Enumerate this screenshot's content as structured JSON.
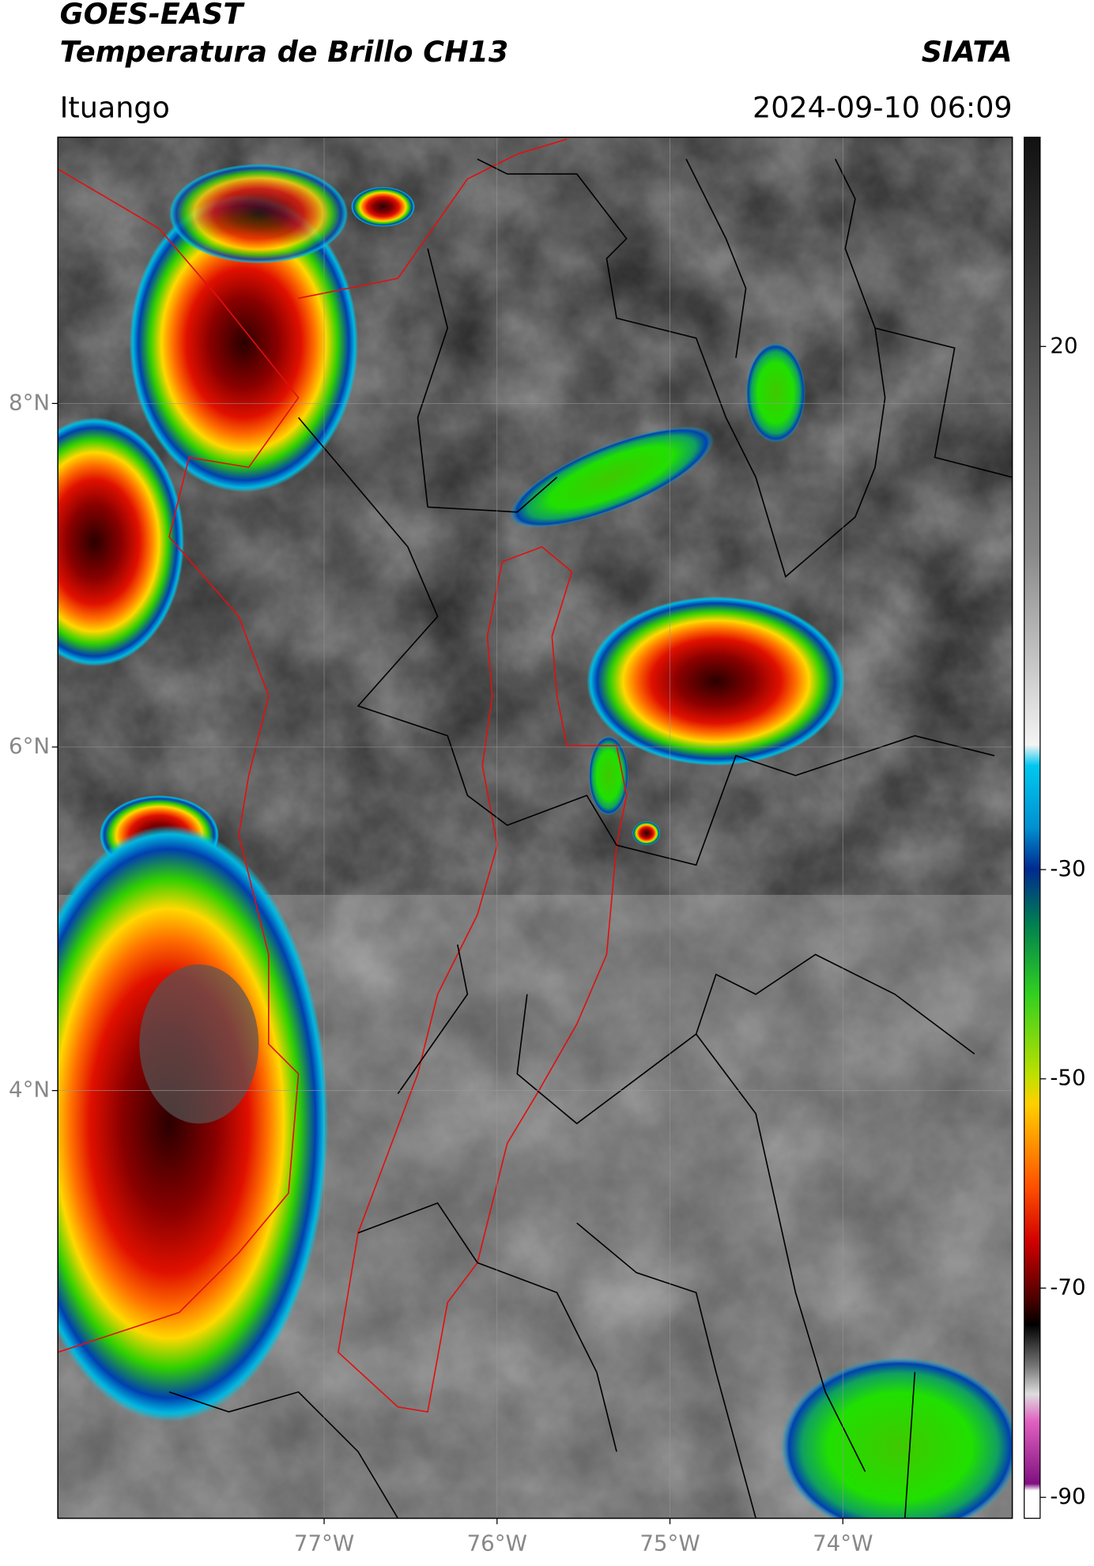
{
  "header": {
    "title": "GOES-EAST",
    "subtitle": "Temperatura de Brillo CH13",
    "brand": "SIATA",
    "location": "Ituango",
    "datetime": "2024-09-10 06:09"
  },
  "map": {
    "lonlim": [
      -78.54,
      -73.02
    ],
    "latlim": [
      1.51,
      9.55
    ],
    "lon_ticks": [
      {
        "value": -77,
        "label": "77°W"
      },
      {
        "value": -76,
        "label": "76°W"
      },
      {
        "value": -75,
        "label": "75°W"
      },
      {
        "value": -74,
        "label": "74°W"
      }
    ],
    "lat_ticks": [
      {
        "value": 8,
        "label": "8°N"
      },
      {
        "value": 6,
        "label": "6°N"
      },
      {
        "value": 4,
        "label": "4°N"
      }
    ]
  },
  "colorbar": {
    "clim": [
      -92,
      40
    ],
    "ticks": [
      20,
      -30,
      -50,
      -70,
      -90
    ]
  }
}
